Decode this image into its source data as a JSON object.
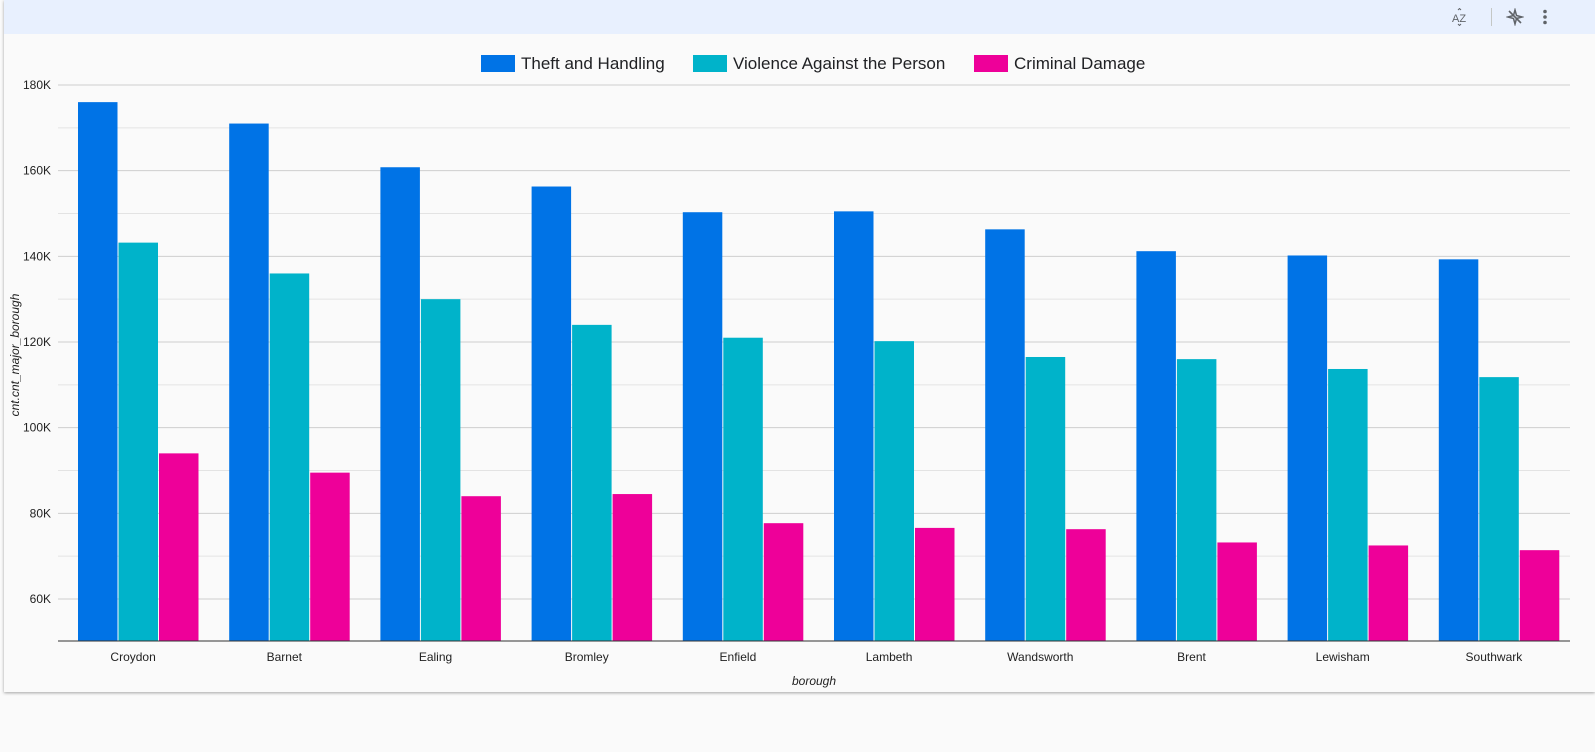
{
  "toolbar": {
    "sort_icon": "sort-az-icon",
    "insights_icon": "sparkle-off-icon",
    "more_icon": "more-vert-icon"
  },
  "chart_data": {
    "type": "bar",
    "categories": [
      "Croydon",
      "Barnet",
      "Ealing",
      "Bromley",
      "Enfield",
      "Lambeth",
      "Wandsworth",
      "Brent",
      "Lewisham",
      "Southwark"
    ],
    "series": [
      {
        "name": "Theft and Handling",
        "color": "#0073e6",
        "values": [
          176000,
          171000,
          160800,
          156300,
          150300,
          150500,
          146300,
          141200,
          140200,
          139300
        ]
      },
      {
        "name": "Violence Against the Person",
        "color": "#00b3ca",
        "values": [
          143200,
          136000,
          130000,
          124000,
          121000,
          120200,
          116500,
          116000,
          113700,
          111800
        ]
      },
      {
        "name": "Criminal Damage",
        "color": "#ee0099",
        "values": [
          94000,
          89500,
          84000,
          84500,
          77700,
          76600,
          76300,
          73200,
          72500,
          71400
        ]
      }
    ],
    "xlabel": "borough",
    "ylabel": "cnt.cnt_major_borough",
    "ylim": [
      50000,
      180000
    ],
    "yticks": [
      60000,
      80000,
      100000,
      120000,
      140000,
      160000,
      180000
    ],
    "ytick_labels": [
      "60K",
      "80K",
      "100K",
      "120K",
      "140K",
      "160K",
      "180K"
    ],
    "legend_position": "top-center",
    "grid": true
  }
}
